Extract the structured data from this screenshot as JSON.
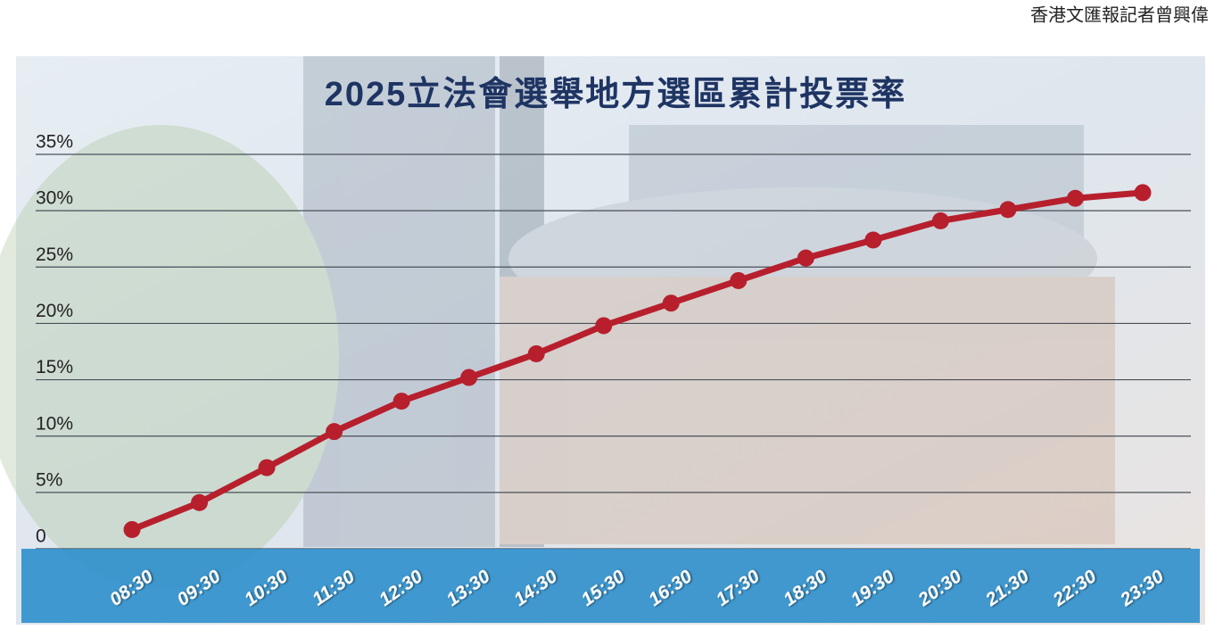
{
  "credit": "香港文匯報記者曾興偉",
  "chart_data": {
    "type": "line",
    "title": "2025立法會選舉地方選區累計投票率",
    "categories": [
      "08:30",
      "09:30",
      "10:30",
      "11:30",
      "12:30",
      "13:30",
      "14:30",
      "15:30",
      "16:30",
      "17:30",
      "18:30",
      "19:30",
      "20:30",
      "21:30",
      "22:30",
      "23:30"
    ],
    "series": [
      {
        "name": "累計投票率",
        "color": "#b71f2d",
        "values": [
          1.7,
          4.1,
          7.2,
          10.4,
          13.1,
          15.2,
          17.3,
          19.8,
          21.8,
          23.8,
          25.8,
          27.4,
          29.1,
          30.1,
          31.1,
          31.6
        ]
      }
    ],
    "ylim": [
      0,
      35
    ],
    "yticks": [
      0,
      {
        "value": 5,
        "label": "5%"
      },
      {
        "value": 10,
        "label": "10%"
      },
      {
        "value": 15,
        "label": "15%"
      },
      {
        "value": 20,
        "label": "20%"
      },
      {
        "value": 25,
        "label": "25%"
      },
      {
        "value": 30,
        "label": "30%"
      },
      {
        "value": 35,
        "label": "35%"
      }
    ],
    "grid": true
  }
}
